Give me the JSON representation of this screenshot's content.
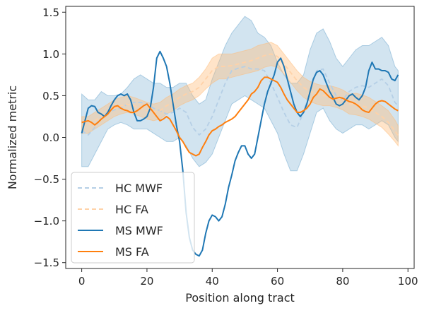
{
  "chart_data": {
    "type": "line",
    "title": "",
    "xlabel": "Position along tract",
    "ylabel": "Normalized metric",
    "xlim": [
      -4.9,
      101.9
    ],
    "ylim": [
      -1.57,
      1.57
    ],
    "xticks": [
      0,
      20,
      40,
      60,
      80,
      100
    ],
    "yticks": [
      -1.5,
      -1.0,
      -0.5,
      0.0,
      0.5,
      1.0,
      1.5
    ],
    "ytick_labels": [
      "−1.5",
      "−1.0",
      "−0.5",
      "0.0",
      "0.5",
      "1.0",
      "1.5"
    ],
    "grid": false,
    "legend_position": "lower-left",
    "colors": {
      "mwf": "#1f77b4",
      "fa": "#ff7f0e",
      "mwf_band": "#1f77b4",
      "fa_band": "#ffbb78"
    },
    "series": [
      {
        "name": "HC MWF",
        "style": "dashed",
        "color": "#b5cfe6",
        "x": [
          0,
          2,
          4,
          6,
          8,
          10,
          12,
          14,
          16,
          18,
          20,
          22,
          24,
          26,
          28,
          30,
          32,
          34,
          36,
          38,
          40,
          42,
          44,
          46,
          48,
          50,
          52,
          54,
          56,
          58,
          60,
          62,
          64,
          66,
          68,
          70,
          72,
          74,
          76,
          78,
          80,
          82,
          84,
          86,
          88,
          90,
          92,
          94,
          96,
          97
        ],
        "y": [
          0.08,
          0.03,
          0.12,
          0.25,
          0.3,
          0.33,
          0.35,
          0.4,
          0.42,
          0.42,
          0.4,
          0.35,
          0.32,
          0.28,
          0.3,
          0.35,
          0.3,
          0.12,
          0.03,
          0.1,
          0.25,
          0.45,
          0.65,
          0.8,
          0.83,
          0.85,
          0.82,
          0.82,
          0.8,
          0.65,
          0.48,
          0.3,
          0.15,
          0.12,
          0.3,
          0.55,
          0.8,
          0.82,
          0.65,
          0.5,
          0.45,
          0.55,
          0.6,
          0.62,
          0.6,
          0.65,
          0.7,
          0.62,
          0.42,
          0.38
        ],
        "band_lower": [
          -0.35,
          -0.35,
          -0.2,
          -0.05,
          0.1,
          0.15,
          0.18,
          0.15,
          0.1,
          0.1,
          0.1,
          0.05,
          0.0,
          -0.05,
          -0.05,
          0.0,
          -0.1,
          -0.25,
          -0.35,
          -0.3,
          -0.2,
          0.0,
          0.2,
          0.4,
          0.45,
          0.5,
          0.45,
          0.4,
          0.35,
          0.2,
          0.05,
          -0.2,
          -0.4,
          -0.4,
          -0.2,
          0.05,
          0.3,
          0.35,
          0.2,
          0.1,
          0.05,
          0.1,
          0.15,
          0.15,
          0.1,
          0.15,
          0.2,
          0.15,
          0.0,
          -0.05
        ],
        "band_upper": [
          0.52,
          0.45,
          0.45,
          0.55,
          0.5,
          0.5,
          0.52,
          0.6,
          0.7,
          0.75,
          0.7,
          0.65,
          0.65,
          0.6,
          0.6,
          0.65,
          0.65,
          0.5,
          0.4,
          0.45,
          0.7,
          0.9,
          1.1,
          1.25,
          1.35,
          1.45,
          1.4,
          1.25,
          1.2,
          1.1,
          0.9,
          0.75,
          0.65,
          0.65,
          0.75,
          1.05,
          1.25,
          1.3,
          1.15,
          0.95,
          0.85,
          0.95,
          1.05,
          1.1,
          1.1,
          1.15,
          1.2,
          1.1,
          0.85,
          0.8
        ]
      },
      {
        "name": "HC FA",
        "style": "dashed",
        "color": "#ffd2a8",
        "x": [
          0,
          2,
          4,
          6,
          8,
          10,
          12,
          14,
          16,
          18,
          20,
          22,
          24,
          26,
          28,
          30,
          32,
          34,
          36,
          38,
          40,
          42,
          44,
          46,
          48,
          50,
          52,
          54,
          56,
          58,
          60,
          62,
          64,
          66,
          68,
          70,
          72,
          74,
          76,
          78,
          80,
          82,
          84,
          86,
          88,
          90,
          92,
          94,
          96,
          97
        ],
        "y": [
          0.15,
          0.15,
          0.2,
          0.25,
          0.3,
          0.35,
          0.38,
          0.4,
          0.38,
          0.35,
          0.32,
          0.3,
          0.32,
          0.38,
          0.42,
          0.48,
          0.52,
          0.55,
          0.6,
          0.7,
          0.8,
          0.85,
          0.85,
          0.86,
          0.88,
          0.9,
          0.92,
          0.95,
          0.98,
          1.0,
          0.97,
          0.88,
          0.78,
          0.68,
          0.6,
          0.55,
          0.52,
          0.5,
          0.5,
          0.48,
          0.45,
          0.4,
          0.4,
          0.38,
          0.35,
          0.3,
          0.25,
          0.18,
          0.08,
          0.02
        ],
        "band_lower": [
          0.05,
          0.05,
          0.1,
          0.15,
          0.2,
          0.25,
          0.28,
          0.3,
          0.28,
          0.25,
          0.22,
          0.2,
          0.22,
          0.28,
          0.32,
          0.38,
          0.42,
          0.45,
          0.5,
          0.58,
          0.65,
          0.7,
          0.7,
          0.72,
          0.74,
          0.76,
          0.78,
          0.8,
          0.84,
          0.86,
          0.84,
          0.76,
          0.66,
          0.56,
          0.48,
          0.43,
          0.4,
          0.38,
          0.38,
          0.36,
          0.33,
          0.28,
          0.27,
          0.25,
          0.22,
          0.17,
          0.12,
          0.04,
          -0.05,
          -0.1
        ],
        "band_upper": [
          0.25,
          0.25,
          0.3,
          0.35,
          0.4,
          0.45,
          0.48,
          0.5,
          0.48,
          0.45,
          0.42,
          0.4,
          0.42,
          0.48,
          0.52,
          0.58,
          0.62,
          0.65,
          0.72,
          0.82,
          0.95,
          1.0,
          1.0,
          1.0,
          1.02,
          1.04,
          1.06,
          1.1,
          1.12,
          1.14,
          1.1,
          1.0,
          0.9,
          0.8,
          0.72,
          0.67,
          0.64,
          0.62,
          0.62,
          0.6,
          0.57,
          0.52,
          0.53,
          0.51,
          0.48,
          0.43,
          0.38,
          0.32,
          0.21,
          0.14
        ]
      },
      {
        "name": "MS MWF",
        "style": "solid",
        "color": "#1f77b4",
        "x": [
          0,
          1,
          2,
          3,
          4,
          5,
          6,
          7,
          8,
          9,
          10,
          11,
          12,
          13,
          14,
          15,
          16,
          17,
          18,
          19,
          20,
          21,
          22,
          23,
          24,
          25,
          26,
          27,
          28,
          29,
          30,
          31,
          32,
          33,
          34,
          35,
          36,
          37,
          38,
          39,
          40,
          41,
          42,
          43,
          44,
          45,
          46,
          47,
          48,
          49,
          50,
          51,
          52,
          53,
          54,
          55,
          56,
          57,
          58,
          59,
          60,
          61,
          62,
          63,
          64,
          65,
          66,
          67,
          68,
          69,
          70,
          71,
          72,
          73,
          74,
          75,
          76,
          77,
          78,
          79,
          80,
          81,
          82,
          83,
          84,
          85,
          86,
          87,
          88,
          89,
          90,
          91,
          92,
          93,
          94,
          95,
          96,
          97
        ],
        "y": [
          0.05,
          0.2,
          0.35,
          0.38,
          0.37,
          0.3,
          0.28,
          0.25,
          0.3,
          0.38,
          0.45,
          0.5,
          0.52,
          0.5,
          0.52,
          0.45,
          0.3,
          0.2,
          0.2,
          0.22,
          0.25,
          0.35,
          0.6,
          0.95,
          1.03,
          0.95,
          0.85,
          0.65,
          0.4,
          0.15,
          -0.05,
          -0.4,
          -0.9,
          -1.2,
          -1.35,
          -1.4,
          -1.42,
          -1.35,
          -1.15,
          -1.0,
          -0.93,
          -0.95,
          -1.0,
          -0.95,
          -0.8,
          -0.6,
          -0.45,
          -0.28,
          -0.18,
          -0.1,
          -0.1,
          -0.2,
          -0.25,
          -0.2,
          0.0,
          0.2,
          0.4,
          0.55,
          0.65,
          0.75,
          0.9,
          0.95,
          0.85,
          0.7,
          0.55,
          0.4,
          0.3,
          0.25,
          0.3,
          0.4,
          0.55,
          0.7,
          0.78,
          0.8,
          0.75,
          0.65,
          0.55,
          0.48,
          0.4,
          0.38,
          0.4,
          0.45,
          0.5,
          0.52,
          0.48,
          0.45,
          0.5,
          0.6,
          0.8,
          0.9,
          0.82,
          0.82,
          0.8,
          0.8,
          0.78,
          0.7,
          0.68,
          0.75
        ]
      },
      {
        "name": "MS FA",
        "style": "solid",
        "color": "#ff7f0e",
        "x": [
          0,
          1,
          2,
          3,
          4,
          5,
          6,
          7,
          8,
          9,
          10,
          11,
          12,
          13,
          14,
          15,
          16,
          17,
          18,
          19,
          20,
          21,
          22,
          23,
          24,
          25,
          26,
          27,
          28,
          29,
          30,
          31,
          32,
          33,
          34,
          35,
          36,
          37,
          38,
          39,
          40,
          41,
          42,
          43,
          44,
          45,
          46,
          47,
          48,
          49,
          50,
          51,
          52,
          53,
          54,
          55,
          56,
          57,
          58,
          59,
          60,
          61,
          62,
          63,
          64,
          65,
          66,
          67,
          68,
          69,
          70,
          71,
          72,
          73,
          74,
          75,
          76,
          77,
          78,
          79,
          80,
          81,
          82,
          83,
          84,
          85,
          86,
          87,
          88,
          89,
          90,
          91,
          92,
          93,
          94,
          95,
          96,
          97
        ],
        "y": [
          0.18,
          0.19,
          0.2,
          0.18,
          0.15,
          0.18,
          0.22,
          0.25,
          0.28,
          0.33,
          0.37,
          0.38,
          0.35,
          0.33,
          0.32,
          0.3,
          0.3,
          0.32,
          0.35,
          0.38,
          0.4,
          0.35,
          0.3,
          0.25,
          0.2,
          0.22,
          0.25,
          0.22,
          0.15,
          0.08,
          0.0,
          -0.05,
          -0.12,
          -0.18,
          -0.2,
          -0.22,
          -0.2,
          -0.12,
          -0.05,
          0.03,
          0.08,
          0.1,
          0.13,
          0.15,
          0.18,
          0.2,
          0.22,
          0.25,
          0.3,
          0.35,
          0.4,
          0.45,
          0.52,
          0.55,
          0.6,
          0.68,
          0.72,
          0.72,
          0.7,
          0.68,
          0.66,
          0.6,
          0.52,
          0.45,
          0.4,
          0.35,
          0.3,
          0.3,
          0.32,
          0.35,
          0.4,
          0.48,
          0.52,
          0.58,
          0.56,
          0.52,
          0.48,
          0.46,
          0.47,
          0.48,
          0.47,
          0.45,
          0.43,
          0.42,
          0.4,
          0.37,
          0.33,
          0.31,
          0.3,
          0.35,
          0.4,
          0.43,
          0.44,
          0.43,
          0.4,
          0.37,
          0.34,
          0.32
        ]
      }
    ]
  }
}
